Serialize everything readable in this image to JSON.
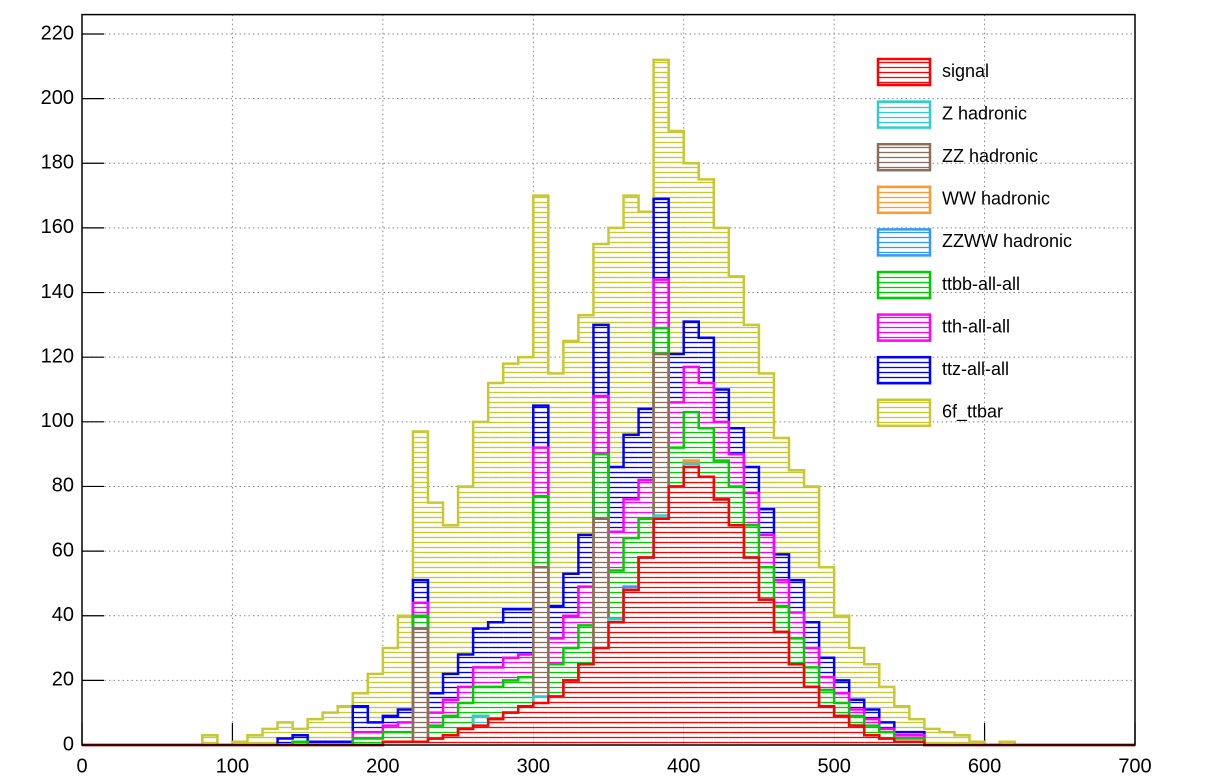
{
  "chart_data": {
    "type": "stacked-histogram",
    "bins": [
      0,
      10,
      20,
      30,
      40,
      50,
      60,
      70,
      80,
      90,
      100,
      110,
      120,
      130,
      140,
      150,
      160,
      170,
      180,
      190,
      200,
      210,
      220,
      230,
      240,
      250,
      260,
      270,
      280,
      290,
      300,
      310,
      320,
      330,
      340,
      350,
      360,
      370,
      380,
      390,
      400,
      410,
      420,
      430,
      440,
      450,
      460,
      470,
      480,
      490,
      500,
      510,
      520,
      530,
      540,
      550,
      560,
      570,
      580,
      590,
      600,
      610,
      620,
      630,
      640,
      650,
      660,
      670,
      680,
      690,
      700
    ],
    "series": [
      {
        "name": "signal",
        "color": "#ff0000",
        "values": [
          0,
          0,
          0,
          0,
          0,
          0,
          0,
          0,
          0,
          0,
          0,
          0,
          0,
          0,
          0,
          0,
          0,
          0,
          0,
          0,
          1,
          1,
          1,
          2,
          3,
          5,
          6,
          8,
          10,
          12,
          13,
          15,
          20,
          25,
          30,
          38,
          48,
          58,
          70,
          80,
          86,
          83,
          76,
          68,
          58,
          45,
          35,
          25,
          18,
          12,
          9,
          6,
          3,
          2,
          1,
          1,
          0,
          0,
          0,
          0,
          0,
          0,
          0,
          0,
          0,
          0,
          0,
          0,
          0,
          0
        ]
      },
      {
        "name": "Z hadronic",
        "color": "#33cccc",
        "values": [
          0,
          0,
          0,
          0,
          0,
          0,
          0,
          0,
          0,
          0,
          0,
          0,
          0,
          0,
          0,
          0,
          0,
          0,
          0,
          0,
          0,
          0,
          0,
          0,
          0,
          0,
          3,
          0,
          0,
          0,
          2,
          0,
          0,
          0,
          0,
          1,
          0,
          0,
          1,
          0,
          1,
          0,
          0,
          0,
          0,
          0,
          0,
          0,
          0,
          0,
          0,
          0,
          0,
          0,
          0,
          0,
          0,
          0,
          0,
          0,
          0,
          0,
          0,
          0,
          0,
          0,
          0,
          0,
          0,
          0
        ]
      },
      {
        "name": "ZZ hadronic",
        "color": "#8c6e5a",
        "values": [
          0,
          0,
          0,
          0,
          0,
          0,
          0,
          0,
          0,
          0,
          0,
          0,
          0,
          0,
          0,
          0,
          0,
          0,
          0,
          0,
          0,
          0,
          35,
          0,
          0,
          0,
          0,
          0,
          0,
          0,
          40,
          0,
          0,
          0,
          40,
          0,
          0,
          0,
          50,
          0,
          0,
          0,
          0,
          0,
          0,
          0,
          0,
          0,
          0,
          0,
          0,
          0,
          0,
          0,
          0,
          0,
          0,
          0,
          0,
          0,
          0,
          0,
          0,
          0,
          0,
          0,
          0,
          0,
          0,
          0
        ]
      },
      {
        "name": "WW hadronic",
        "color": "#ff9933",
        "values": [
          0,
          0,
          0,
          0,
          0,
          0,
          0,
          0,
          0,
          0,
          0,
          0,
          0,
          0,
          0,
          0,
          0,
          0,
          0,
          0,
          0,
          0,
          0,
          0,
          0,
          0,
          0,
          0,
          0,
          0,
          0,
          0,
          0,
          0,
          0,
          0,
          0,
          0,
          0,
          0,
          1,
          0,
          0,
          0,
          0,
          0,
          0,
          0,
          0,
          0,
          0,
          0,
          0,
          0,
          0,
          0,
          0,
          0,
          0,
          0,
          0,
          0,
          0,
          0,
          0,
          0,
          0,
          0,
          0,
          0
        ]
      },
      {
        "name": "ZZWW hadronic",
        "color": "#3399ff",
        "values": [
          0,
          0,
          0,
          0,
          0,
          0,
          0,
          0,
          0,
          0,
          0,
          0,
          0,
          0,
          0,
          0,
          0,
          0,
          0,
          0,
          0,
          0,
          0,
          0,
          0,
          0,
          0,
          0,
          0,
          0,
          0,
          0,
          0,
          0,
          0,
          0,
          1,
          0,
          0,
          0,
          0,
          0,
          0,
          0,
          0,
          0,
          0,
          0,
          0,
          0,
          0,
          0,
          0,
          0,
          0,
          0,
          0,
          0,
          0,
          0,
          0,
          0,
          0,
          0,
          0,
          0,
          0,
          0,
          0,
          0
        ]
      },
      {
        "name": "ttbb-all-all",
        "color": "#00cc00",
        "values": [
          0,
          0,
          0,
          0,
          0,
          0,
          0,
          0,
          0,
          0,
          0,
          0,
          0,
          0,
          1,
          0,
          0,
          0,
          2,
          2,
          3,
          3,
          4,
          4,
          6,
          8,
          9,
          10,
          10,
          9,
          22,
          10,
          10,
          12,
          20,
          15,
          15,
          12,
          8,
          12,
          15,
          15,
          12,
          12,
          10,
          10,
          8,
          8,
          6,
          5,
          4,
          3,
          3,
          2,
          1,
          1,
          0,
          0,
          0,
          0,
          0,
          0,
          0,
          0,
          0,
          0,
          0,
          0,
          0,
          0
        ]
      },
      {
        "name": "tth-all-all",
        "color": "#ff00ff",
        "values": [
          0,
          0,
          0,
          0,
          0,
          0,
          0,
          0,
          0,
          0,
          0,
          0,
          0,
          0,
          0,
          0,
          0,
          0,
          2,
          2,
          2,
          3,
          4,
          4,
          5,
          5,
          6,
          6,
          7,
          7,
          15,
          8,
          10,
          12,
          18,
          12,
          12,
          12,
          15,
          14,
          14,
          14,
          12,
          10,
          10,
          10,
          8,
          8,
          6,
          4,
          3,
          2,
          2,
          1,
          1,
          1,
          0,
          0,
          0,
          0,
          0,
          0,
          0,
          0,
          0,
          0,
          0,
          0,
          0,
          0
        ]
      },
      {
        "name": "ttz-all-all",
        "color": "#0000ff",
        "values": [
          0,
          0,
          0,
          0,
          0,
          0,
          0,
          0,
          0,
          0,
          0,
          0,
          0,
          2,
          2,
          1,
          1,
          1,
          8,
          3,
          3,
          4,
          7,
          6,
          8,
          10,
          12,
          14,
          15,
          14,
          13,
          10,
          13,
          16,
          22,
          20,
          20,
          22,
          25,
          15,
          14,
          14,
          10,
          8,
          8,
          8,
          8,
          10,
          8,
          6,
          4,
          3,
          3,
          2,
          1,
          1,
          0,
          0,
          0,
          0,
          0,
          0,
          0,
          0,
          0,
          0,
          0,
          0,
          0,
          0
        ]
      },
      {
        "name": "6f_ttbar",
        "color": "#c8c832",
        "values": [
          0,
          0,
          0,
          0,
          0,
          0,
          0,
          0,
          3,
          0,
          1,
          3,
          5,
          5,
          2,
          7,
          9,
          11,
          4,
          15,
          21,
          29,
          46,
          59,
          46,
          52,
          64,
          74,
          76,
          78,
          65,
          72,
          72,
          68,
          25,
          74,
          74,
          61,
          43,
          69,
          49,
          49,
          50,
          47,
          44,
          42,
          36,
          34,
          42,
          28,
          20,
          16,
          14,
          11,
          8,
          4,
          5,
          4,
          3,
          1,
          0,
          1,
          0,
          0,
          0,
          0,
          0,
          0,
          0,
          0
        ]
      }
    ],
    "xlim": [
      0,
      700
    ],
    "xticks": [
      0,
      100,
      200,
      300,
      400,
      500,
      600,
      700
    ],
    "ylim": [
      0,
      226
    ],
    "yticks": [
      0,
      20,
      40,
      60,
      80,
      100,
      120,
      140,
      160,
      180,
      200,
      220
    ],
    "grid": true
  }
}
